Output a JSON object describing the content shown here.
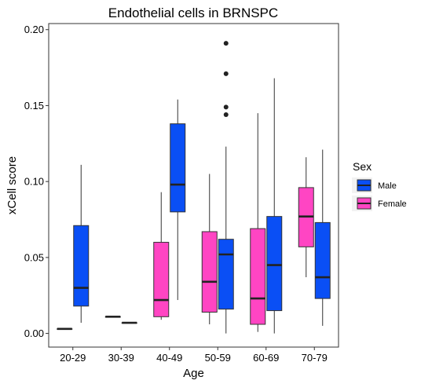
{
  "chart_data": {
    "type": "boxplot",
    "title": "Endothelial cells in BRNSPC",
    "xlabel": "Age",
    "ylabel": "xCell score",
    "ylim": [
      -0.009,
      0.204
    ],
    "yticks": [
      0.0,
      0.05,
      0.1,
      0.15,
      0.2
    ],
    "ytick_labels": [
      "0.00",
      "0.05",
      "0.10",
      "0.15",
      "0.20"
    ],
    "categories": [
      "20-29",
      "30-39",
      "40-49",
      "50-59",
      "60-69",
      "70-79"
    ],
    "grid": false,
    "legend": {
      "title": "Sex",
      "position": "right",
      "entries": [
        {
          "label": "Male",
          "color": "#0a4ff5"
        },
        {
          "label": "Female",
          "color": "#ff45c3"
        }
      ]
    },
    "series": [
      {
        "name": "Male",
        "color": "#0a4ff5",
        "boxes": [
          {
            "category": "20-29",
            "min": 0.007,
            "q1": 0.018,
            "median": 0.03,
            "q3": 0.071,
            "max": 0.111,
            "outliers": []
          },
          {
            "category": "30-39",
            "min": 0.007,
            "q1": 0.007,
            "median": 0.007,
            "q3": 0.007,
            "max": 0.007,
            "outliers": []
          },
          {
            "category": "40-49",
            "min": 0.022,
            "q1": 0.08,
            "median": 0.098,
            "q3": 0.138,
            "max": 0.154,
            "outliers": []
          },
          {
            "category": "50-59",
            "min": 0.0,
            "q1": 0.016,
            "median": 0.052,
            "q3": 0.062,
            "max": 0.123,
            "outliers": [
              0.144,
              0.149,
              0.171,
              0.191
            ]
          },
          {
            "category": "60-69",
            "min": 0.0,
            "q1": 0.015,
            "median": 0.045,
            "q3": 0.077,
            "max": 0.168,
            "outliers": []
          },
          {
            "category": "70-79",
            "min": 0.005,
            "q1": 0.023,
            "median": 0.037,
            "q3": 0.073,
            "max": 0.121,
            "outliers": []
          }
        ]
      },
      {
        "name": "Female",
        "color": "#ff45c3",
        "boxes": [
          {
            "category": "20-29",
            "min": 0.003,
            "q1": 0.003,
            "median": 0.003,
            "q3": 0.003,
            "max": 0.003,
            "outliers": []
          },
          {
            "category": "30-39",
            "min": 0.011,
            "q1": 0.011,
            "median": 0.011,
            "q3": 0.011,
            "max": 0.011,
            "outliers": []
          },
          {
            "category": "40-49",
            "min": 0.009,
            "q1": 0.011,
            "median": 0.022,
            "q3": 0.06,
            "max": 0.093,
            "outliers": []
          },
          {
            "category": "50-59",
            "min": 0.006,
            "q1": 0.014,
            "median": 0.034,
            "q3": 0.067,
            "max": 0.105,
            "outliers": []
          },
          {
            "category": "60-69",
            "min": 0.001,
            "q1": 0.006,
            "median": 0.023,
            "q3": 0.069,
            "max": 0.145,
            "outliers": []
          },
          {
            "category": "70-79",
            "min": 0.037,
            "q1": 0.057,
            "median": 0.077,
            "q3": 0.096,
            "max": 0.116,
            "outliers": []
          }
        ]
      }
    ]
  }
}
